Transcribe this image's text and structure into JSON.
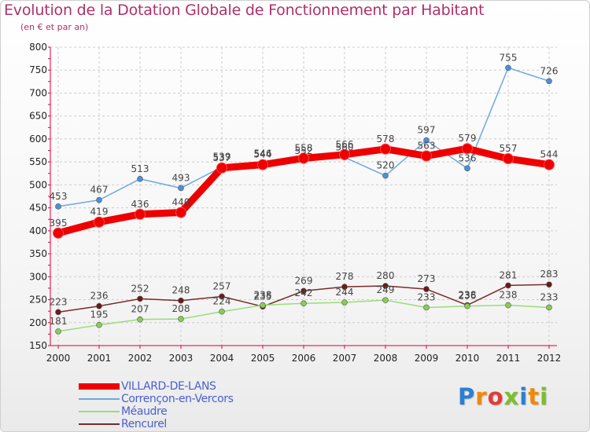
{
  "title": "Evolution de la Dotation Globale de Fonctionnement par Habitant",
  "subtitle": "(en € et par an)",
  "colors": {
    "title": "#b0306a",
    "axis": "#e0003a",
    "legend_text": "#4a5fd0",
    "grid": "#cccccc"
  },
  "chart_data": {
    "type": "line",
    "title": "Evolution de la Dotation Globale de Fonctionnement par Habitant",
    "subtitle": "(en € et par an)",
    "x": [
      2000,
      2001,
      2002,
      2003,
      2004,
      2005,
      2006,
      2007,
      2008,
      2009,
      2010,
      2011,
      2012
    ],
    "ylim": [
      150,
      800
    ],
    "yticks": [
      150,
      200,
      250,
      300,
      350,
      400,
      450,
      500,
      550,
      600,
      650,
      700,
      750,
      800
    ],
    "grid": true,
    "legend_position": "bottom-left",
    "series": [
      {
        "name": "VILLARD-DE-LANS",
        "color": "#ee0000",
        "marker_color": "#ee0000",
        "values": [
          395,
          419,
          436,
          440,
          537,
          544,
          558,
          566,
          578,
          563,
          579,
          557,
          544
        ],
        "labels": [
          "395",
          "419",
          "436",
          "440",
          "537",
          "544",
          "558",
          "566",
          "578",
          "563",
          "579",
          "557",
          "544"
        ]
      },
      {
        "name": "Corrençon-en-Vercors",
        "color": "#6fa8dc",
        "marker_color": "#4a90d9",
        "values": [
          453,
          467,
          513,
          493,
          539,
          546,
          552,
          560,
          520,
          597,
          536,
          755,
          726
        ],
        "labels": [
          "453",
          "467",
          "513",
          "493",
          "539",
          "546",
          "552",
          "560",
          "520",
          "597",
          "536",
          "755",
          "726"
        ]
      },
      {
        "name": "Méaudre",
        "color": "#99dd77",
        "marker_color": "#88cc55",
        "values": [
          181,
          195,
          207,
          208,
          224,
          238,
          242,
          244,
          249,
          233,
          236,
          238,
          233
        ],
        "labels": [
          "181",
          "195",
          "207",
          "208",
          "224",
          "238",
          "242",
          "244",
          "249",
          "233",
          "236",
          "238",
          "233"
        ]
      },
      {
        "name": "Rencurel",
        "color": "#7a2a2a",
        "marker_color": "#6a1a1a",
        "values": [
          223,
          236,
          252,
          248,
          257,
          235,
          269,
          278,
          280,
          273,
          238,
          281,
          283
        ],
        "labels": [
          "223",
          "236",
          "252",
          "248",
          "257",
          "235",
          "269",
          "278",
          "280",
          "273",
          "238",
          "281",
          "283"
        ]
      }
    ]
  },
  "legend": {
    "items": [
      {
        "label": "VILLARD-DE-LANS"
      },
      {
        "label": "Corrençon-en-Vercors"
      },
      {
        "label": "Méaudre"
      },
      {
        "label": "Rencurel"
      }
    ]
  },
  "logo": {
    "letters": [
      "P",
      "r",
      "o",
      "x",
      "i",
      "t",
      "i"
    ],
    "colors": [
      "#2a7fd4",
      "#f08a00",
      "#e23b3b",
      "#7bbf2a",
      "#2a7fd4",
      "#f08a00",
      "#7bbf2a"
    ]
  }
}
